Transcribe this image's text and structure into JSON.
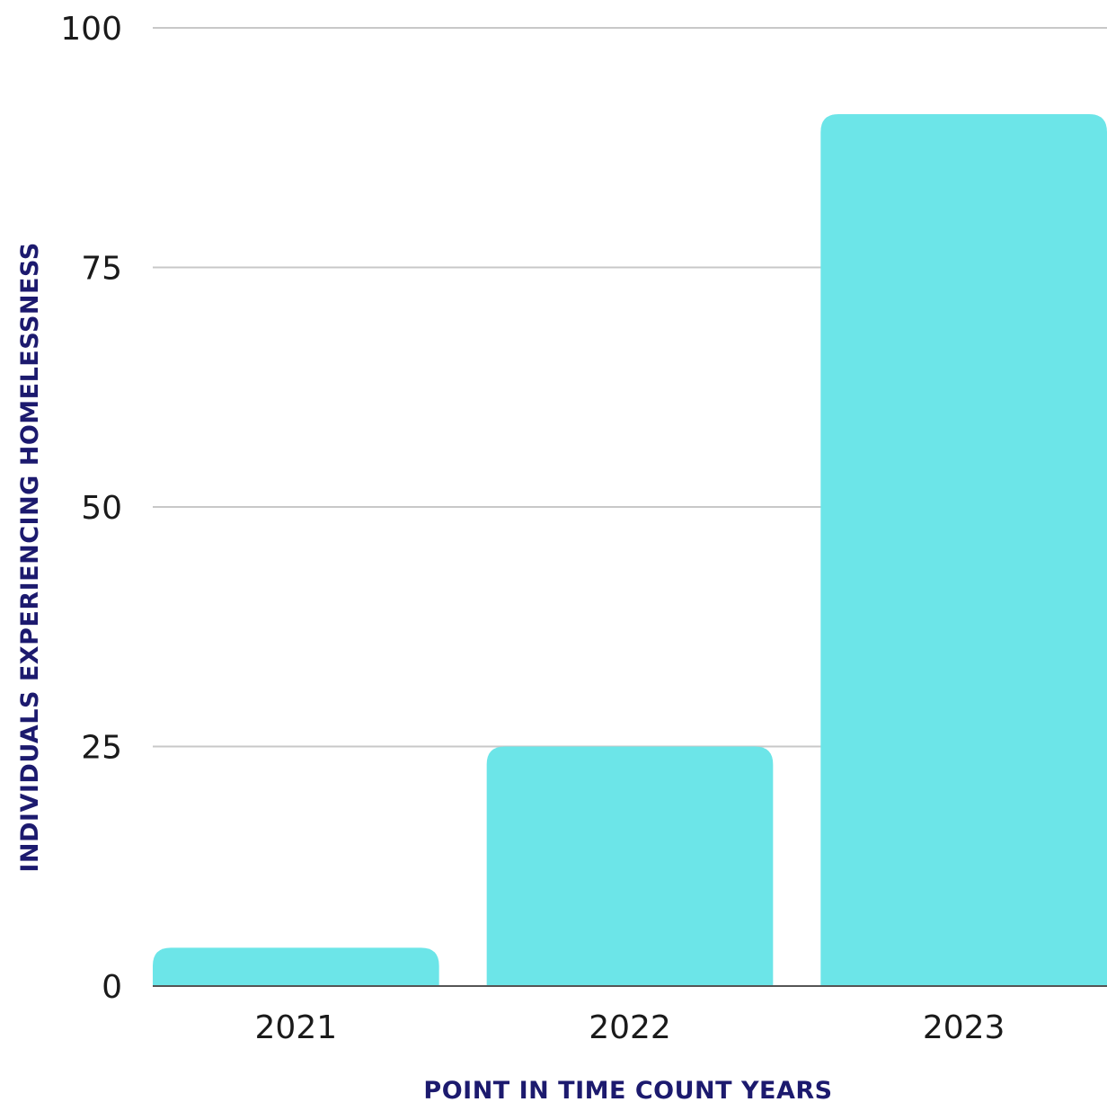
{
  "chart_data": {
    "type": "bar",
    "categories": [
      "2021",
      "2022",
      "2023"
    ],
    "values": [
      4,
      25,
      91
    ],
    "title": "",
    "xlabel": "POINT IN TIME COUNT YEARS",
    "ylabel": "INDIVIDUALS EXPERIENCING HOMELESSNESS",
    "ylim": [
      0,
      100
    ],
    "yticks": [
      "0",
      "25",
      "50",
      "75",
      "100"
    ],
    "grid": true,
    "bar_color": "#6ce5e8",
    "gridline_color": "#c8c8c8",
    "axis_title_color": "#1c1a6e",
    "baseline_color": "#555555"
  }
}
